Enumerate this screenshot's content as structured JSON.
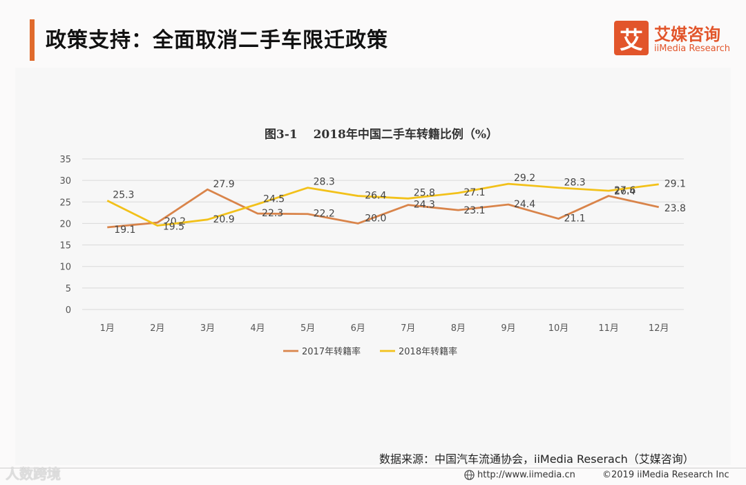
{
  "header": {
    "title": "政策支持：全面取消二手车限迁政策",
    "accent": "#e06a2c"
  },
  "brand": {
    "mark": "艾",
    "name": "艾媒咨询",
    "sub": "iiMedia Research",
    "color": "#e2552b"
  },
  "chart_data": {
    "type": "line",
    "title": "图3-1　 2018年中国二手车转籍比例（%）",
    "categories": [
      "1月",
      "2月",
      "3月",
      "4月",
      "5月",
      "6月",
      "7月",
      "8月",
      "9月",
      "10月",
      "11月",
      "12月"
    ],
    "series": [
      {
        "name": "2017年转籍率",
        "color": "#d9844a",
        "values": [
          19.1,
          20.2,
          27.9,
          22.3,
          22.2,
          20.0,
          24.3,
          23.1,
          24.4,
          21.1,
          26.4,
          23.8
        ],
        "labels": [
          "19.1",
          "20.2",
          "27.9",
          "22.3",
          "22.2",
          "20.0",
          "24.3",
          "23.1",
          "24.4",
          "21.1",
          "26.4",
          "23.8"
        ]
      },
      {
        "name": "2018年转籍率",
        "color": "#f2c11a",
        "values": [
          25.3,
          19.5,
          20.9,
          24.5,
          28.3,
          26.4,
          25.8,
          27.1,
          29.2,
          28.3,
          27.6,
          29.1
        ],
        "labels": [
          "25.3",
          "19.5",
          "20.9",
          "24.5",
          "28.3",
          "26.4",
          "25.8",
          "27.1",
          "29.2",
          "28.3",
          "27.6",
          "29.1"
        ]
      }
    ],
    "ylim": [
      0,
      35
    ],
    "yticks": [
      "0",
      "5",
      "10",
      "15",
      "20",
      "25",
      "30",
      "35"
    ],
    "grid": true,
    "legend": "bottom"
  },
  "footer": {
    "source": "数据来源：中国汽车流通协会，iiMedia Reserach（艾媒咨询）",
    "watermark": "人数跨境",
    "url": "http://www.iimedia.cn",
    "copyright": "©2019  iiMedia Research  Inc"
  }
}
